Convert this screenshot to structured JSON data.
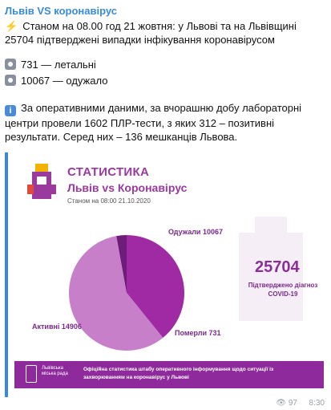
{
  "channel": {
    "title": "Львів VS коронавірус"
  },
  "message": {
    "line1": "Станом на 08.00 год 21 жовтня: у Львові та на Львівщині 25704 підтверджені випадки інфікування коронавірусом",
    "line_deaths": "731 — летальні",
    "line_recovered": "10067 — одужало",
    "line_info": "За оперативними даними, за вчорашню добу лабораторні центри провели 1602 ПЛР-тести, з яких 312 – позитивні результати. Серед них – 136 мешканців Львова."
  },
  "infographic": {
    "title": "СТАТИСТИКА",
    "subtitle": "Львів vs Коронавірус",
    "date": "Станом на 08:00 21.10.2020",
    "total_value": "25704",
    "total_caption": "Підтверджено діагноз COVID-19",
    "footer_org": "Львівська міська рада",
    "footer_note": "Офіційна статистика штабу оперативного інформування щодо ситуації із захворюванням на коронавірус у Львові",
    "labels": {
      "recovered": "Одужали 10067",
      "active": "Активні 14906",
      "deaths": "Померли 731"
    },
    "colors": {
      "primary": "#9b3a9e",
      "active": "#c87fc9",
      "recovered": "#a02aa4",
      "deaths": "#6b1d79",
      "band": "#8e2a9b"
    }
  },
  "chart_data": {
    "type": "pie",
    "categories": [
      "Одужали",
      "Активні",
      "Померли"
    ],
    "values": [
      10067,
      14906,
      731
    ]
  },
  "meta": {
    "views": "97",
    "time": "8:30"
  }
}
